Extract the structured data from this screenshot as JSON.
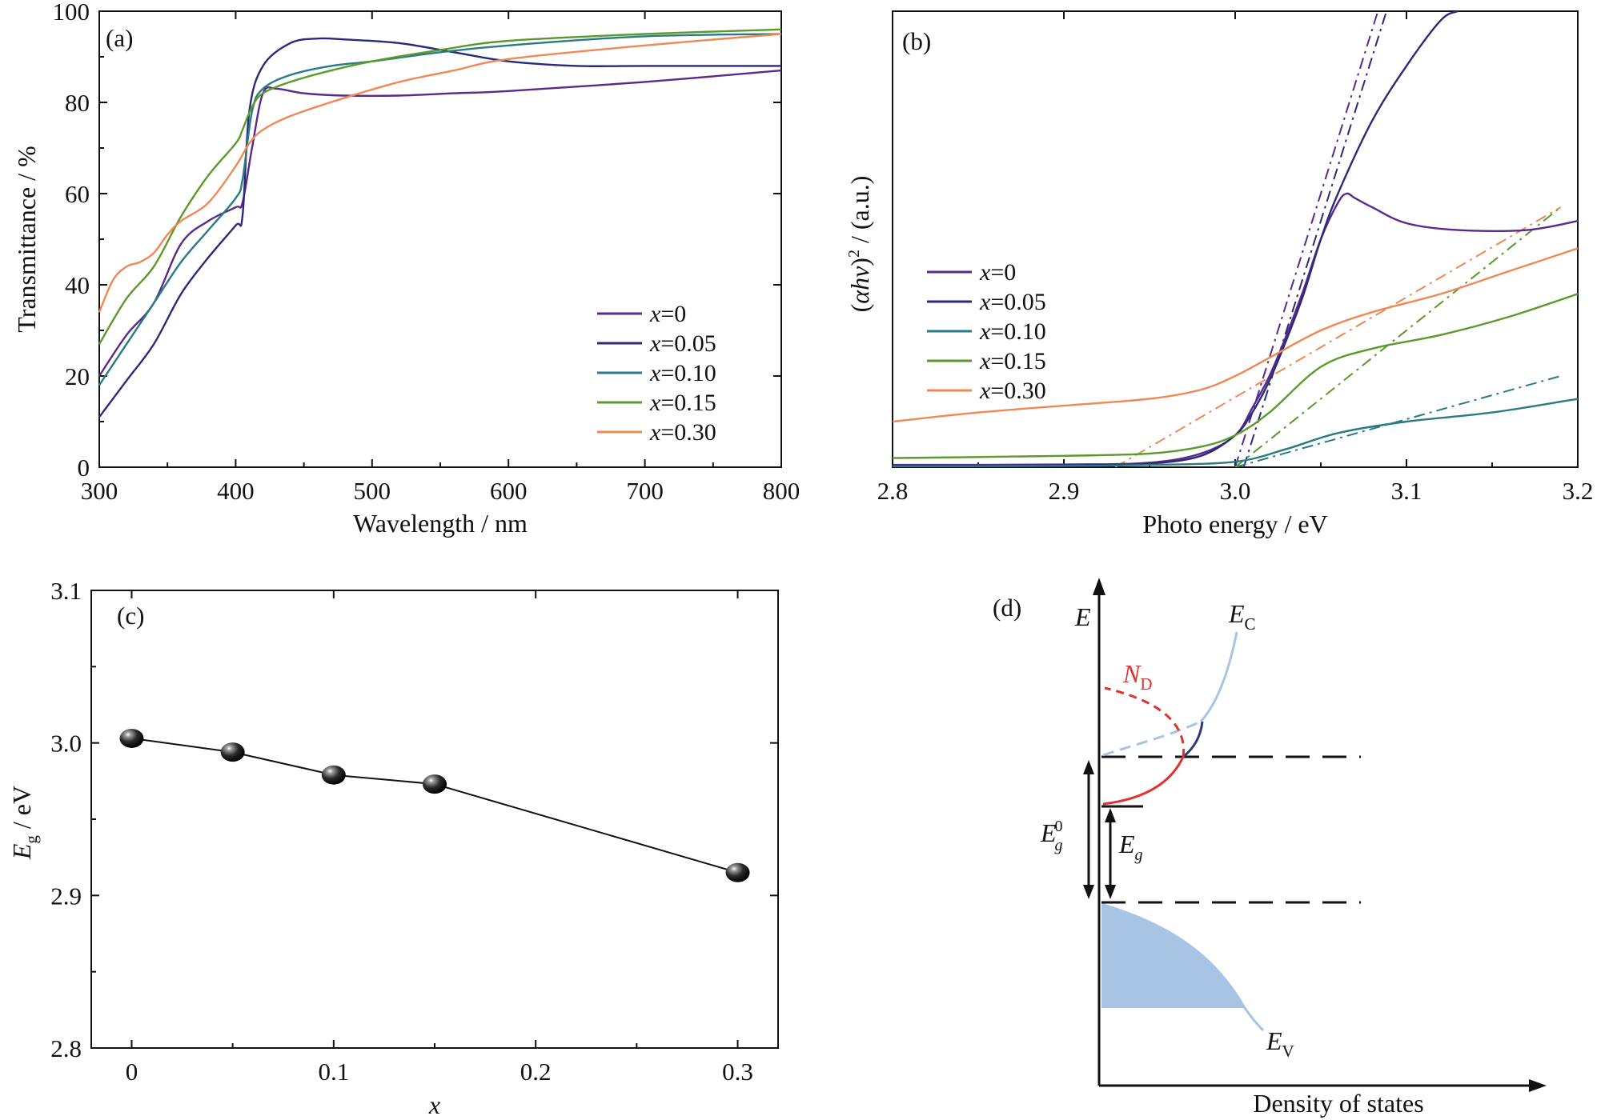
{
  "chart_data": [
    {
      "id": "a",
      "type": "line",
      "panel_label": "(a)",
      "xlabel": "Wavelength / nm",
      "ylabel": "Transmittance / %",
      "xlim": [
        300,
        800
      ],
      "ylim": [
        0,
        100
      ],
      "xticks": [
        300,
        400,
        500,
        600,
        700,
        800
      ],
      "yticks": [
        0,
        20,
        40,
        60,
        80,
        100
      ],
      "legend_position": "lower-right",
      "legend_prefix": "x",
      "series": [
        {
          "name": "=0",
          "color": "#5a2a8a",
          "x": [
            300,
            320,
            340,
            360,
            380,
            400,
            405,
            412,
            420,
            430,
            450,
            480,
            520,
            560,
            600,
            700,
            800
          ],
          "y": [
            20,
            29,
            36,
            49,
            54,
            57,
            58,
            70,
            82,
            83,
            82,
            81.5,
            81.5,
            82,
            82.5,
            84.5,
            87
          ]
        },
        {
          "name": "=0.05",
          "color": "#2b2a7a",
          "x": [
            300,
            320,
            340,
            360,
            380,
            400,
            405,
            410,
            420,
            440,
            460,
            480,
            520,
            560,
            600,
            650,
            700,
            800
          ],
          "y": [
            11,
            19,
            27,
            38,
            46,
            53,
            55,
            78,
            88,
            93,
            94,
            93.8,
            93,
            91,
            89,
            88,
            88,
            88
          ]
        },
        {
          "name": "=0.10",
          "color": "#2a7a85",
          "x": [
            300,
            320,
            340,
            360,
            380,
            400,
            405,
            412,
            420,
            440,
            470,
            500,
            550,
            600,
            700,
            800
          ],
          "y": [
            18,
            27,
            36,
            45,
            52,
            59,
            63,
            78,
            83,
            86,
            88,
            89,
            91,
            92.5,
            94.5,
            95
          ]
        },
        {
          "name": "=0.15",
          "color": "#5a9a2a",
          "x": [
            300,
            320,
            340,
            360,
            380,
            400,
            405,
            412,
            420,
            440,
            470,
            500,
            550,
            600,
            700,
            800
          ],
          "y": [
            27,
            37,
            44,
            55,
            64,
            71,
            74,
            79,
            82,
            84.5,
            87,
            89,
            91.5,
            93.5,
            95,
            96
          ]
        },
        {
          "name": "=0.30",
          "color": "#f08855",
          "x": [
            300,
            310,
            320,
            330,
            340,
            350,
            360,
            380,
            400,
            410,
            420,
            440,
            480,
            520,
            560,
            600,
            700,
            800
          ],
          "y": [
            34,
            41,
            44,
            45,
            47,
            51,
            54,
            58,
            66,
            71,
            74,
            77,
            81,
            84.5,
            87,
            89.5,
            92.5,
            95
          ]
        }
      ]
    },
    {
      "id": "b",
      "type": "line",
      "panel_label": "(b)",
      "xlabel": "Photo energy / eV",
      "ylabel_parts": [
        "(",
        "αhν",
        ")",
        "2",
        " / (a.u.)"
      ],
      "xlim": [
        2.8,
        3.2
      ],
      "ylim": [
        0,
        1
      ],
      "xticks": [
        2.8,
        2.9,
        3.0,
        3.1,
        3.2
      ],
      "xtick_labels": [
        "2.8",
        "2.9",
        "3.0",
        "3.1",
        "3.2"
      ],
      "legend_position": "middle-left",
      "legend_prefix": "x",
      "series": [
        {
          "name": "=0",
          "color": "#5a2a8a",
          "x": [
            2.8,
            2.9,
            2.95,
            2.98,
            3.0,
            3.01,
            3.02,
            3.03,
            3.04,
            3.05,
            3.06,
            3.065,
            3.07,
            3.08,
            3.1,
            3.13,
            3.17,
            3.2
          ],
          "y": [
            0.005,
            0.006,
            0.01,
            0.03,
            0.07,
            0.13,
            0.2,
            0.29,
            0.39,
            0.5,
            0.58,
            0.6,
            0.59,
            0.57,
            0.535,
            0.52,
            0.52,
            0.54
          ]
        },
        {
          "name": "=0.05",
          "color": "#2b2a7a",
          "x": [
            2.8,
            2.9,
            2.95,
            2.98,
            3.0,
            3.01,
            3.02,
            3.03,
            3.04,
            3.05,
            3.06,
            3.08,
            3.1,
            3.12,
            3.13
          ],
          "y": [
            0.003,
            0.004,
            0.008,
            0.025,
            0.07,
            0.12,
            0.19,
            0.28,
            0.38,
            0.5,
            0.6,
            0.76,
            0.88,
            0.98,
            1.0
          ]
        },
        {
          "name": "=0.10",
          "color": "#2a7a85",
          "x": [
            2.8,
            2.9,
            2.95,
            3.0,
            3.03,
            3.06,
            3.1,
            3.15,
            3.2
          ],
          "y": [
            0.002,
            0.003,
            0.005,
            0.012,
            0.04,
            0.075,
            0.1,
            0.12,
            0.15
          ]
        },
        {
          "name": "=0.15",
          "color": "#5a9a2a",
          "x": [
            2.8,
            2.9,
            2.95,
            2.98,
            3.0,
            3.02,
            3.05,
            3.08,
            3.12,
            3.16,
            3.2
          ],
          "y": [
            0.02,
            0.025,
            0.03,
            0.045,
            0.07,
            0.12,
            0.22,
            0.26,
            0.29,
            0.33,
            0.38
          ]
        },
        {
          "name": "=0.30",
          "color": "#f08855",
          "x": [
            2.8,
            2.85,
            2.9,
            2.95,
            2.98,
            3.0,
            3.02,
            3.05,
            3.08,
            3.12,
            3.16,
            3.2
          ],
          "y": [
            0.1,
            0.12,
            0.135,
            0.15,
            0.17,
            0.2,
            0.24,
            0.3,
            0.34,
            0.38,
            0.43,
            0.48
          ]
        }
      ],
      "tangent_lines": [
        {
          "color": "#5a2a8a",
          "x": [
            3.0,
            3.085
          ],
          "y": [
            0.0,
            1.02
          ]
        },
        {
          "color": "#2b2a7a",
          "x": [
            3.005,
            3.09
          ],
          "y": [
            0.0,
            1.02
          ]
        },
        {
          "color": "#2a7a85",
          "x": [
            3.0,
            3.19
          ],
          "y": [
            0.0,
            0.2
          ]
        },
        {
          "color": "#5a9a2a",
          "x": [
            3.0,
            3.19
          ],
          "y": [
            0.0,
            0.57
          ]
        },
        {
          "color": "#f08855",
          "x": [
            2.93,
            3.19
          ],
          "y": [
            0.0,
            0.57
          ]
        }
      ]
    },
    {
      "id": "c",
      "type": "scatter",
      "panel_label": "(c)",
      "xlabel": "x",
      "ylabel_main": "E",
      "ylabel_sub": "g",
      "ylabel_rest": " / eV",
      "xlim": [
        -0.02,
        0.32
      ],
      "ylim": [
        2.8,
        3.1
      ],
      "xticks": [
        0,
        0.1,
        0.2,
        0.3
      ],
      "xtick_labels": [
        "0",
        "0.1",
        "0.2",
        "0.3"
      ],
      "yticks": [
        2.8,
        2.9,
        3.0,
        3.1
      ],
      "ytick_labels": [
        "2.8",
        "2.9",
        "3.0",
        "3.1"
      ],
      "x": [
        0,
        0.05,
        0.1,
        0.15,
        0.3
      ],
      "y": [
        3.003,
        2.994,
        2.979,
        2.973,
        2.915
      ]
    }
  ],
  "diagram_d": {
    "panel_label": "(d)",
    "energy_axis_label": "E",
    "dos_axis_label": "Density of states",
    "conduction_band_main": "E",
    "conduction_band_sub": "C",
    "valence_band_main": "E",
    "valence_band_sub": "V",
    "donor_main": "N",
    "donor_sub": "D",
    "gap0_main": "E",
    "gap0_sub": "g",
    "gap0_sup": "0",
    "gap_main": "E",
    "gap_sub": "g",
    "colors": {
      "donor": "#e03030",
      "band": "#a8c4e4",
      "band_fill": "#a8c4e4",
      "band_edge": "#2b3a7a"
    }
  }
}
